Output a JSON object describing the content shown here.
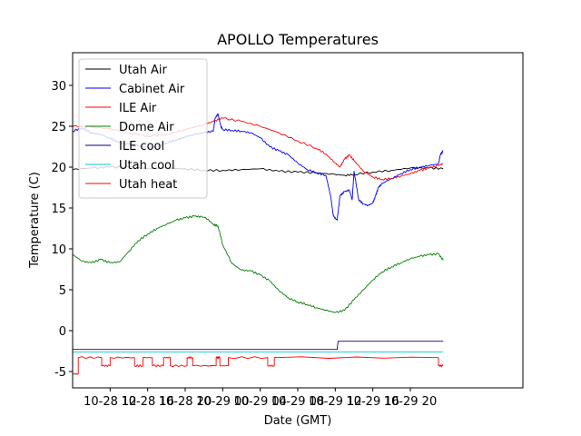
{
  "chart_data": {
    "type": "line",
    "title": "APOLLO Temperatures",
    "xlabel": "Date (GMT)",
    "ylabel": "Temperature (C)",
    "xlim": [
      0,
      48
    ],
    "ylim": [
      -7,
      34
    ],
    "yticks": [
      -5,
      0,
      5,
      10,
      15,
      20,
      25,
      30
    ],
    "xticks": [
      {
        "pos": 4,
        "label": "10-28 12"
      },
      {
        "pos": 8,
        "label": "10-28 16"
      },
      {
        "pos": 12,
        "label": "10-28 20"
      },
      {
        "pos": 16,
        "label": "10-29 00"
      },
      {
        "pos": 20,
        "label": "10-29 04"
      },
      {
        "pos": 24,
        "label": "10-29 08"
      },
      {
        "pos": 28,
        "label": "10-29 12"
      },
      {
        "pos": 32,
        "label": "10-29 16"
      },
      {
        "pos": 36,
        "label": "10-29 20"
      }
    ],
    "legend_position": "top-left",
    "series": [
      {
        "name": "Utah Air",
        "color": "#000000",
        "x": [
          0,
          2,
          4,
          6,
          8,
          10,
          12,
          14,
          16,
          18,
          20,
          22,
          24,
          26,
          28,
          29,
          30,
          32,
          34,
          36,
          38,
          39.5
        ],
        "y": [
          19.7,
          19.9,
          20.0,
          20.0,
          19.8,
          19.9,
          19.8,
          19.6,
          19.6,
          19.7,
          19.8,
          19.5,
          19.4,
          19.3,
          19.1,
          19.0,
          19.1,
          19.4,
          19.6,
          19.9,
          19.9,
          19.8
        ]
      },
      {
        "name": "Cabinet Air",
        "color": "#0000ff",
        "x": [
          0,
          1,
          2,
          3,
          4,
          5,
          6,
          7,
          8,
          9,
          10,
          11,
          12,
          13,
          14,
          15,
          15.2,
          15.5,
          15.8,
          16,
          17,
          18,
          19,
          20,
          21,
          22,
          23,
          24,
          25,
          26,
          27,
          27.5,
          27.8,
          28.2,
          28.5,
          29,
          29.5,
          29.8,
          30,
          30.5,
          31,
          31.5,
          32,
          32.3,
          32.6,
          33,
          34,
          35,
          36,
          37,
          38,
          39,
          39.2,
          39.5
        ],
        "y": [
          24.4,
          24.8,
          24.2,
          24.0,
          23.5,
          23.0,
          22.8,
          22.6,
          22.4,
          22.5,
          23.0,
          23.3,
          23.7,
          24.0,
          24.2,
          24.4,
          26.0,
          26.5,
          25.0,
          24.6,
          24.5,
          24.4,
          24.2,
          23.6,
          22.5,
          22.0,
          21.5,
          20.5,
          19.7,
          19.3,
          19.0,
          16.5,
          14.0,
          13.5,
          16.5,
          17.0,
          17.2,
          16.0,
          19.5,
          16.0,
          15.5,
          15.3,
          15.6,
          16.5,
          17.5,
          18.0,
          18.6,
          19.2,
          19.7,
          20.0,
          20.2,
          20.4,
          21.5,
          22.0
        ]
      },
      {
        "name": "ILE Air",
        "color": "#ff0000",
        "x": [
          0,
          2,
          4,
          6,
          8,
          10,
          12,
          14,
          15,
          16,
          18,
          20,
          22,
          24,
          26,
          27,
          28,
          28.5,
          29,
          29.5,
          30,
          31,
          32,
          33,
          34,
          35,
          36,
          37,
          38,
          39,
          39.5
        ],
        "y": [
          25.0,
          24.9,
          24.7,
          24.2,
          23.8,
          24.0,
          24.6,
          25.2,
          25.6,
          26.0,
          25.6,
          25.0,
          24.2,
          23.2,
          22.3,
          21.6,
          20.5,
          20.0,
          21.0,
          21.5,
          20.8,
          19.5,
          18.8,
          18.5,
          18.6,
          18.9,
          19.2,
          19.6,
          19.9,
          20.2,
          20.4
        ]
      },
      {
        "name": "Dome Air",
        "color": "#008000",
        "x": [
          0,
          1,
          2,
          3,
          4,
          5,
          6,
          7,
          8,
          9,
          10,
          11,
          12,
          13,
          13.8,
          14.2,
          15,
          15.5,
          16,
          17,
          18,
          19,
          20,
          21,
          22,
          23,
          24,
          25,
          26,
          27,
          28,
          29,
          30,
          31,
          32,
          33,
          34,
          35,
          36,
          37,
          38,
          39,
          39.5
        ],
        "y": [
          9.3,
          8.5,
          8.3,
          8.7,
          8.3,
          8.4,
          9.7,
          11.0,
          11.8,
          12.5,
          13.0,
          13.5,
          13.8,
          14.0,
          13.9,
          13.8,
          13.0,
          12.8,
          10.5,
          8.2,
          7.4,
          7.3,
          6.8,
          6.1,
          4.9,
          4.0,
          3.5,
          3.2,
          2.8,
          2.5,
          2.2,
          2.5,
          3.8,
          5.0,
          6.2,
          7.2,
          7.8,
          8.3,
          8.8,
          9.1,
          9.3,
          9.4,
          8.6
        ]
      },
      {
        "name": "ILE cool",
        "color": "#000080",
        "x": [
          0,
          28.2,
          28.3,
          39.5
        ],
        "y": [
          -2.3,
          -2.3,
          -1.3,
          -1.3
        ]
      },
      {
        "name": "Utah cool",
        "color": "#00cccc",
        "x": [
          0,
          39.5
        ],
        "y": [
          -2.6,
          -2.6
        ]
      },
      {
        "name": "Utah heat",
        "color": "#ff0000",
        "x": [
          0,
          0.6,
          0.6,
          3.1,
          3.1,
          4.0,
          4.0,
          6.6,
          6.6,
          7.5,
          7.5,
          8.5,
          8.5,
          9.7,
          9.7,
          10.4,
          10.4,
          12.2,
          12.2,
          12.8,
          12.8,
          15.3,
          15.3,
          15.7,
          15.7,
          16.6,
          16.6,
          20.8,
          20.8,
          21.5,
          21.5,
          39.0,
          39.0,
          39.5
        ],
        "y": [
          -5.3,
          -5.3,
          -3.3,
          -3.3,
          -4.3,
          -4.3,
          -3.3,
          -3.3,
          -4.3,
          -4.3,
          -3.3,
          -3.3,
          -4.3,
          -4.3,
          -3.3,
          -3.3,
          -4.3,
          -4.3,
          -3.3,
          -3.3,
          -4.3,
          -4.3,
          -3.3,
          -3.3,
          -4.3,
          -4.3,
          -3.3,
          -3.3,
          -4.3,
          -4.3,
          -3.3,
          -3.3,
          -4.3,
          -4.3
        ]
      }
    ]
  }
}
